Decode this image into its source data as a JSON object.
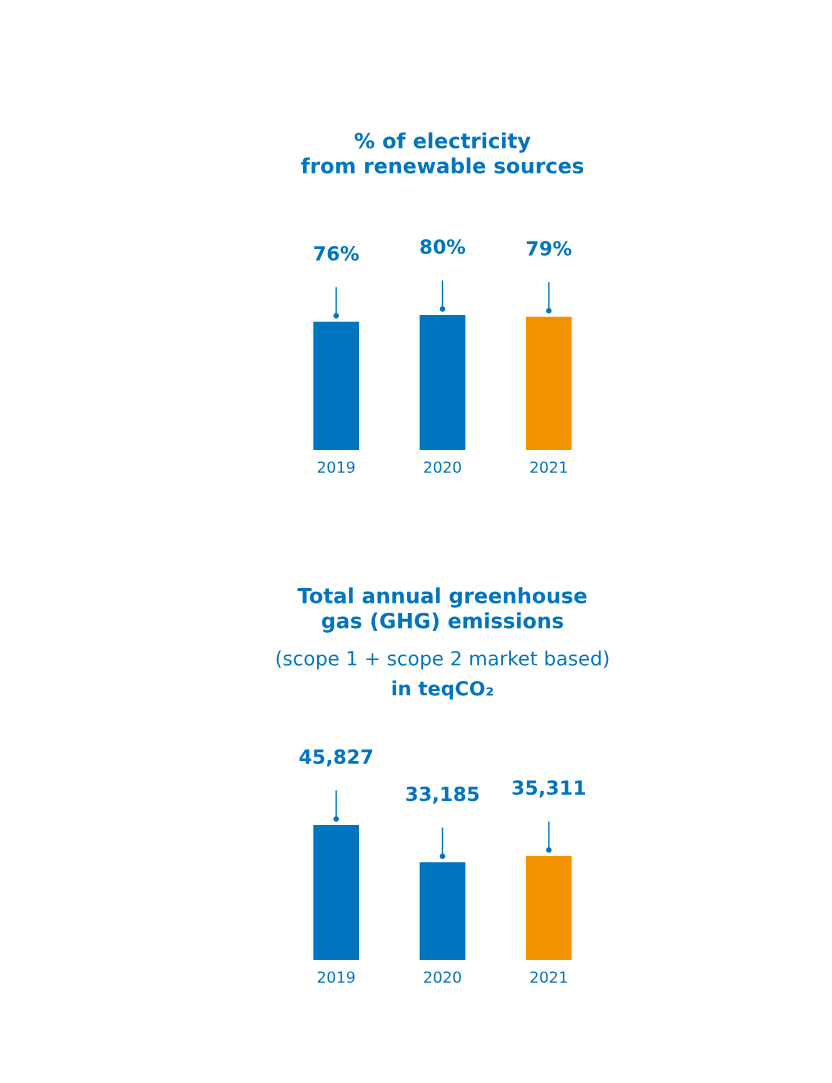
{
  "chart_data": [
    {
      "type": "bar",
      "title": "% of electricity\nfrom renewable sources",
      "categories": [
        "2019",
        "2020",
        "2021"
      ],
      "values": [
        76,
        80,
        79
      ],
      "colors": [
        "#0075bf",
        "#0075bf",
        "#f39200"
      ],
      "value_labels": [
        "76%",
        "80%",
        "79%"
      ],
      "tick_labels": "x"
    },
    {
      "type": "bar",
      "title": "Total annual greenhouse\ngas (GHG) emissions",
      "subtitle": "(scope 1 + scope 2 market based)",
      "annotations": [
        "in teqCO₂"
      ],
      "categories": [
        "2019",
        "2020",
        "2021"
      ],
      "values": [
        45827,
        33185,
        35311
      ],
      "colors": [
        "#0075bf",
        "#0075bf",
        "#f39200"
      ],
      "value_labels": [
        "45,827",
        "33,185",
        "35,311"
      ],
      "tick_labels": "x"
    }
  ]
}
